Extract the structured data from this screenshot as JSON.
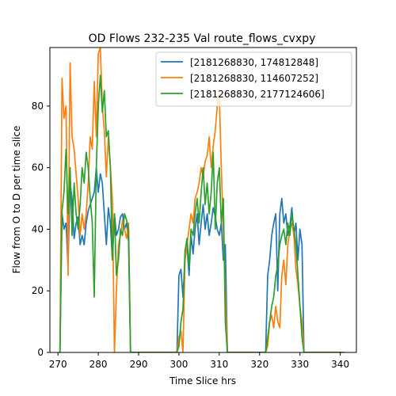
{
  "chart_data": {
    "type": "line",
    "title": "OD Flows 232-235 Val route_flows_cvxpy",
    "xlabel": "Time Slice hrs",
    "ylabel": "Flow from O to D per time slice",
    "xlim": [
      268,
      344
    ],
    "ylim": [
      0,
      99
    ],
    "xticks": [
      270,
      280,
      290,
      300,
      310,
      320,
      330,
      340
    ],
    "yticks": [
      0,
      20,
      40,
      60,
      80
    ],
    "grid": false,
    "legend_position": "top-right",
    "series": [
      {
        "name": "[2181268830, 174812848]",
        "color": "#1f77b4",
        "x": [
          270.5,
          271,
          271.5,
          272,
          272.5,
          273,
          273.5,
          274,
          274.5,
          275,
          275.5,
          276,
          276.5,
          277,
          277.5,
          278,
          278.5,
          279,
          279.5,
          280,
          280.5,
          281,
          281.5,
          282,
          282.5,
          283,
          283.5,
          284,
          284.5,
          285,
          285.5,
          286,
          286.5,
          287,
          287.5,
          288,
          290,
          295,
          299.5,
          300,
          300.5,
          301,
          301.5,
          302,
          302.5,
          303,
          303.5,
          304,
          304.5,
          305,
          305.5,
          306,
          306.5,
          307,
          307.5,
          308,
          308.5,
          309,
          309.5,
          310,
          310.5,
          311,
          311.5,
          312,
          312.5,
          313,
          320,
          321.5,
          322,
          322.5,
          323,
          323.5,
          324,
          324.5,
          325,
          325.5,
          326,
          326.5,
          327,
          327.5,
          328,
          328.5,
          329,
          329.5,
          330,
          330.5,
          331,
          341
        ],
        "y": [
          0,
          45,
          40,
          42,
          28,
          55,
          50,
          37,
          42,
          44,
          35,
          38,
          35,
          42,
          46,
          48,
          50,
          52,
          60,
          52,
          58,
          55,
          45,
          35,
          47,
          42,
          30,
          45,
          38,
          40,
          44,
          45,
          40,
          42,
          36,
          0,
          0,
          0,
          0,
          25,
          27,
          18,
          30,
          35,
          25,
          38,
          32,
          40,
          45,
          35,
          42,
          48,
          40,
          45,
          38,
          42,
          47,
          44,
          40,
          38,
          42,
          30,
          35,
          0,
          0,
          0,
          0,
          0,
          25,
          30,
          38,
          42,
          45,
          20,
          45,
          50,
          42,
          45,
          38,
          41,
          47,
          38,
          42,
          30,
          40,
          35,
          0,
          0
        ]
      },
      {
        "name": "[2181268830, 114607252]",
        "color": "#ff7f0e",
        "x": [
          270.5,
          271,
          271.5,
          272,
          272.5,
          273,
          273.5,
          274,
          274.5,
          275,
          275.5,
          276,
          276.5,
          277,
          277.5,
          278,
          278.5,
          279,
          279.5,
          280,
          280.5,
          281,
          281.5,
          282,
          282.5,
          283,
          283.5,
          284,
          284.5,
          285,
          285.5,
          286,
          286.5,
          287,
          287.5,
          288,
          290,
          295,
          299.5,
          300,
          300.5,
          301,
          301.5,
          302,
          302.5,
          303,
          303.5,
          304,
          304.5,
          305,
          305.5,
          306,
          306.5,
          307,
          307.5,
          308,
          308.5,
          309,
          309.5,
          310,
          310.5,
          311,
          311.5,
          312,
          312.5,
          313,
          320,
          321.5,
          322,
          322.5,
          323,
          323.5,
          324,
          324.5,
          325,
          325.5,
          326,
          326.5,
          327,
          327.5,
          328,
          328.5,
          329,
          329.5,
          330,
          330.5,
          331,
          341
        ],
        "y": [
          0,
          89,
          76,
          80,
          25,
          94,
          70,
          66,
          58,
          50,
          38,
          45,
          40,
          45,
          55,
          70,
          66,
          88,
          70,
          97,
          99,
          80,
          72,
          57,
          70,
          60,
          50,
          0,
          20,
          35,
          38,
          43,
          40,
          37,
          42,
          0,
          0,
          0,
          0,
          5,
          7,
          0,
          30,
          35,
          40,
          45,
          42,
          50,
          52,
          55,
          60,
          57,
          62,
          64,
          70,
          60,
          67,
          72,
          80,
          84,
          60,
          40,
          20,
          0,
          0,
          0,
          0,
          0,
          2,
          10,
          12,
          8,
          15,
          10,
          8,
          25,
          30,
          22,
          35,
          40,
          42,
          38,
          27,
          22,
          15,
          10,
          0,
          0
        ]
      },
      {
        "name": "[2181268830, 2177124606]",
        "color": "#2ca02c",
        "x": [
          270.5,
          271,
          271.5,
          272,
          272.5,
          273,
          273.5,
          274,
          274.5,
          275,
          275.5,
          276,
          276.5,
          277,
          277.5,
          278,
          278.5,
          279,
          279.5,
          280,
          280.5,
          281,
          281.5,
          282,
          282.5,
          283,
          283.5,
          284,
          284.5,
          285,
          285.5,
          286,
          286.5,
          287,
          287.5,
          288,
          290,
          295,
          299.5,
          300,
          300.5,
          301,
          301.5,
          302,
          302.5,
          303,
          303.5,
          304,
          304.5,
          305,
          305.5,
          306,
          306.5,
          307,
          307.5,
          308,
          308.5,
          309,
          309.5,
          310,
          310.5,
          311,
          311.5,
          312,
          312.5,
          313,
          320,
          321.5,
          322,
          322.5,
          323,
          323.5,
          324,
          324.5,
          325,
          325.5,
          326,
          326.5,
          327,
          327.5,
          328,
          328.5,
          329,
          329.5,
          330,
          330.5,
          331,
          341
        ],
        "y": [
          0,
          46,
          52,
          66,
          45,
          60,
          38,
          55,
          45,
          40,
          48,
          60,
          55,
          65,
          60,
          50,
          42,
          18,
          60,
          80,
          90,
          78,
          85,
          70,
          72,
          60,
          30,
          45,
          25,
          30,
          40,
          38,
          45,
          43,
          40,
          0,
          0,
          0,
          0,
          2,
          10,
          14,
          33,
          37,
          28,
          40,
          38,
          45,
          50,
          42,
          52,
          60,
          48,
          55,
          45,
          52,
          65,
          40,
          55,
          60,
          42,
          50,
          10,
          0,
          0,
          0,
          0,
          0,
          5,
          10,
          15,
          18,
          25,
          28,
          35,
          38,
          40,
          35,
          42,
          38,
          45,
          40,
          35,
          25,
          15,
          5,
          0,
          0
        ]
      }
    ]
  }
}
